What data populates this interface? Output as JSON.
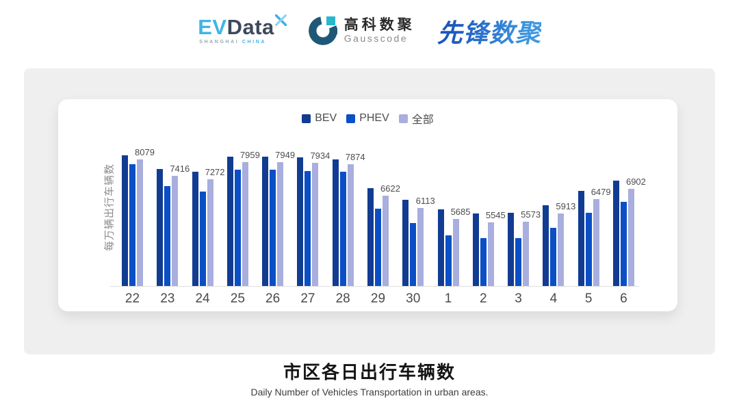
{
  "header": {
    "evdata": {
      "text_ev": "EV",
      "text_data": "Data",
      "tagline_left": "SHANGHAI",
      "tagline_right": "CHINA"
    },
    "gausscode": {
      "cn": "高科数聚",
      "en": "Gausscode"
    },
    "pioneer": {
      "text": "先锋数聚"
    }
  },
  "chart_data": {
    "type": "bar",
    "title": "",
    "ylabel": "每万辆出行车辆数",
    "categories": [
      "22",
      "23",
      "24",
      "25",
      "26",
      "27",
      "28",
      "29",
      "30",
      "1",
      "2",
      "3",
      "4",
      "5",
      "6"
    ],
    "series": [
      {
        "name": "BEV",
        "color": "#123C92",
        "estimated": true,
        "values": [
          8230,
          7690,
          7580,
          8180,
          8170,
          8160,
          8070,
          6930,
          6450,
          6070,
          5910,
          5940,
          6230,
          6800,
          7220
        ]
      },
      {
        "name": "PHEV",
        "color": "#0A4FC6",
        "estimated": true,
        "values": [
          7870,
          6990,
          6780,
          7670,
          7650,
          7600,
          7570,
          6100,
          5510,
          5030,
          4920,
          4920,
          5340,
          5920,
          6380
        ]
      },
      {
        "name": "全部",
        "color": "#A8AEDD",
        "data_labels": true,
        "values": [
          8079,
          7416,
          7272,
          7959,
          7949,
          7934,
          7874,
          6622,
          6113,
          5685,
          5545,
          5573,
          5913,
          6479,
          6902
        ]
      }
    ],
    "ylim": [
      3000,
      9300
    ],
    "axis_tick_labels_visible": false,
    "grid": false,
    "legend_position": "top-center"
  },
  "footer": {
    "title": "市区各日出行车辆数",
    "subtitle": "Daily Number of Vehicles Transportation in urban areas."
  }
}
